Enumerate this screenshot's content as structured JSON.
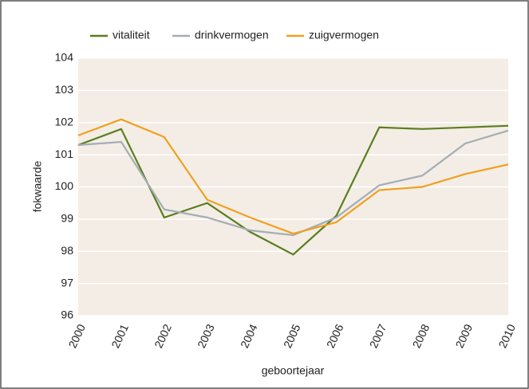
{
  "chart_data": {
    "type": "line",
    "x_label": "geboortejaar",
    "y_label": "fokwaarde",
    "categories": [
      "2000",
      "2001",
      "2002",
      "2003",
      "2004",
      "2005",
      "2006",
      "2007",
      "2008",
      "2009",
      "2010"
    ],
    "series": [
      {
        "name": "vitaliteit",
        "color": "#5b7d1e",
        "values": [
          101.3,
          101.8,
          99.05,
          99.5,
          98.6,
          97.9,
          99.1,
          101.85,
          101.8,
          101.85,
          101.9
        ]
      },
      {
        "name": "drinkvermogen",
        "color": "#a3adb5",
        "values": [
          101.3,
          101.4,
          99.3,
          99.05,
          98.65,
          98.5,
          99.05,
          100.05,
          100.35,
          101.35,
          101.75
        ]
      },
      {
        "name": "zuigvermogen",
        "color": "#f0a020",
        "values": [
          101.6,
          102.1,
          101.55,
          99.6,
          99.05,
          98.55,
          98.9,
          99.9,
          100.0,
          100.4,
          100.7
        ]
      }
    ],
    "ylim": [
      96,
      104
    ],
    "yticks": [
      96,
      97,
      98,
      99,
      100,
      101,
      102,
      103,
      104
    ],
    "grid": true,
    "legend": "top"
  }
}
